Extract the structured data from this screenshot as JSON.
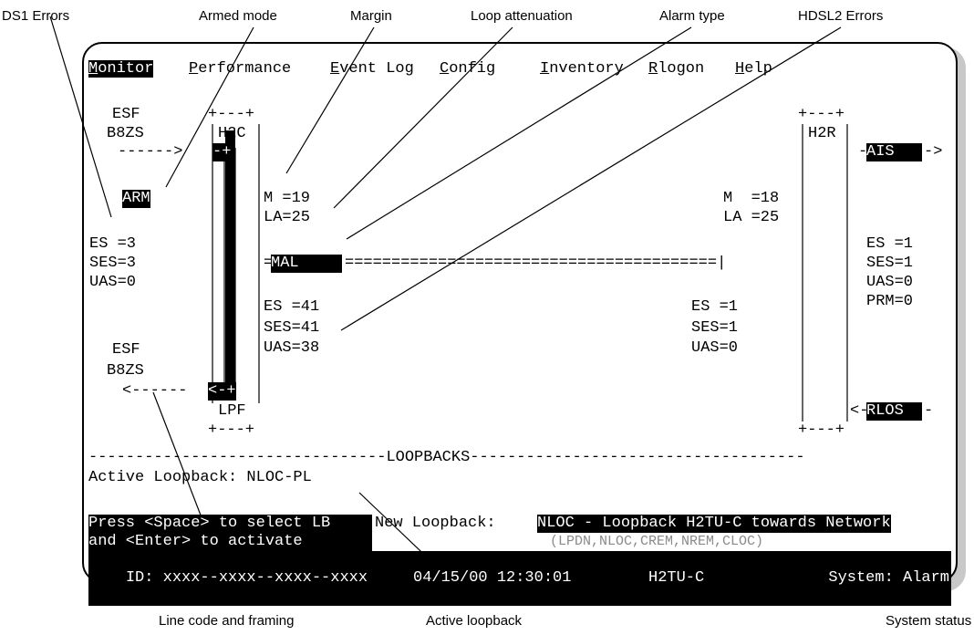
{
  "callouts": {
    "ds1_errors": "DS1 Errors",
    "armed_mode": "Armed mode",
    "margin": "Margin",
    "loop_attenuation": "Loop attenuation",
    "alarm_type": "Alarm type",
    "hdsl2_errors": "HDSL2 Errors",
    "line_code_framing": "Line code and framing",
    "active_loopback": "Active loopback",
    "system_status": "System status"
  },
  "menu": {
    "monitor": {
      "key": "M",
      "rest": "onitor"
    },
    "performance": {
      "key": "P",
      "rest": "erformance"
    },
    "event_log": {
      "key": "E",
      "rest": "vent Log"
    },
    "config": {
      "key": "C",
      "rest": "onfig"
    },
    "inventory": {
      "key": "I",
      "rest": "nventory"
    },
    "rlogon": {
      "key": "R",
      "rest": "logon"
    },
    "help": {
      "key": "H",
      "rest": "elp"
    }
  },
  "terminal": {
    "lines": [
      "ESF    +---+",
      "B8ZS   |H2C|",
      "------>|   |",
      "ARM    |   |   M =19",
      "       |   |   LA=25",
      "ES =3",
      "SES=3          =",
      "UAS=0",
      "               ES =41",
      "               SES=41",
      "ESF            UAS=38",
      "B8ZS",
      "<------",
      "       |LPF|",
      "       +---+"
    ],
    "left_arrow_in": "-+",
    "left_arrow_out": "<-+",
    "armed": "ARM",
    "left_ds1": {
      "es": "ES =3",
      "ses": "SES=3",
      "uas": "UAS=0"
    },
    "left_line_code_top": {
      "frame": "ESF",
      "code": "B8ZS",
      "arrow": "------>"
    },
    "left_line_code_bottom": {
      "frame": "ESF",
      "code": "B8ZS",
      "arrow": "<------"
    },
    "h2c_label": "H2C",
    "lpf_label": "LPF",
    "box_top": "+---+",
    "box_bottom": "+---+",
    "h2r_label": "H2R",
    "margin_c": "M =19",
    "atten_c": "LA=25",
    "margin_r": "M  =18",
    "atten_r": "LA =25",
    "alarm_prefix": "=",
    "alarm": "MAL",
    "span_line": "========================================|",
    "hdsl_c": {
      "es": "ES =41",
      "ses": "SES=41",
      "uas": "UAS=38"
    },
    "hdsl_r": {
      "es": "ES =1",
      "ses": "SES=1",
      "uas": "UAS=0"
    },
    "right_ds1": {
      "es": "ES =1",
      "ses": "SES=1",
      "uas": "UAS=0",
      "prm": "PRM=0"
    },
    "ais_prefix": "-",
    "ais": "AIS   ",
    "ais_suffix": "->",
    "rlos_prefix": "<-",
    "rlos": "RLOS  ",
    "rlos_suffix": "-"
  },
  "loopbacks": {
    "divider": "--------------------------------LOOPBACKS------------------------------------",
    "active_label": "Active Loopback: NLOC-PL",
    "help_1": "Press <Space> to select LB",
    "help_2": "and <Enter> to activate",
    "new_label": "New Loopback:",
    "new_value": "NLOC - Loopback H2TU-C towards Network",
    "options": "(LPDN,NLOC,CREM,NREM,CLOC)"
  },
  "status_bar": {
    "id": "ID: xxxx--xxxx--xxxx--xxxx",
    "datetime": "04/15/00 12:30:01",
    "unit": "H2TU-C",
    "system": "System: Alarm"
  }
}
